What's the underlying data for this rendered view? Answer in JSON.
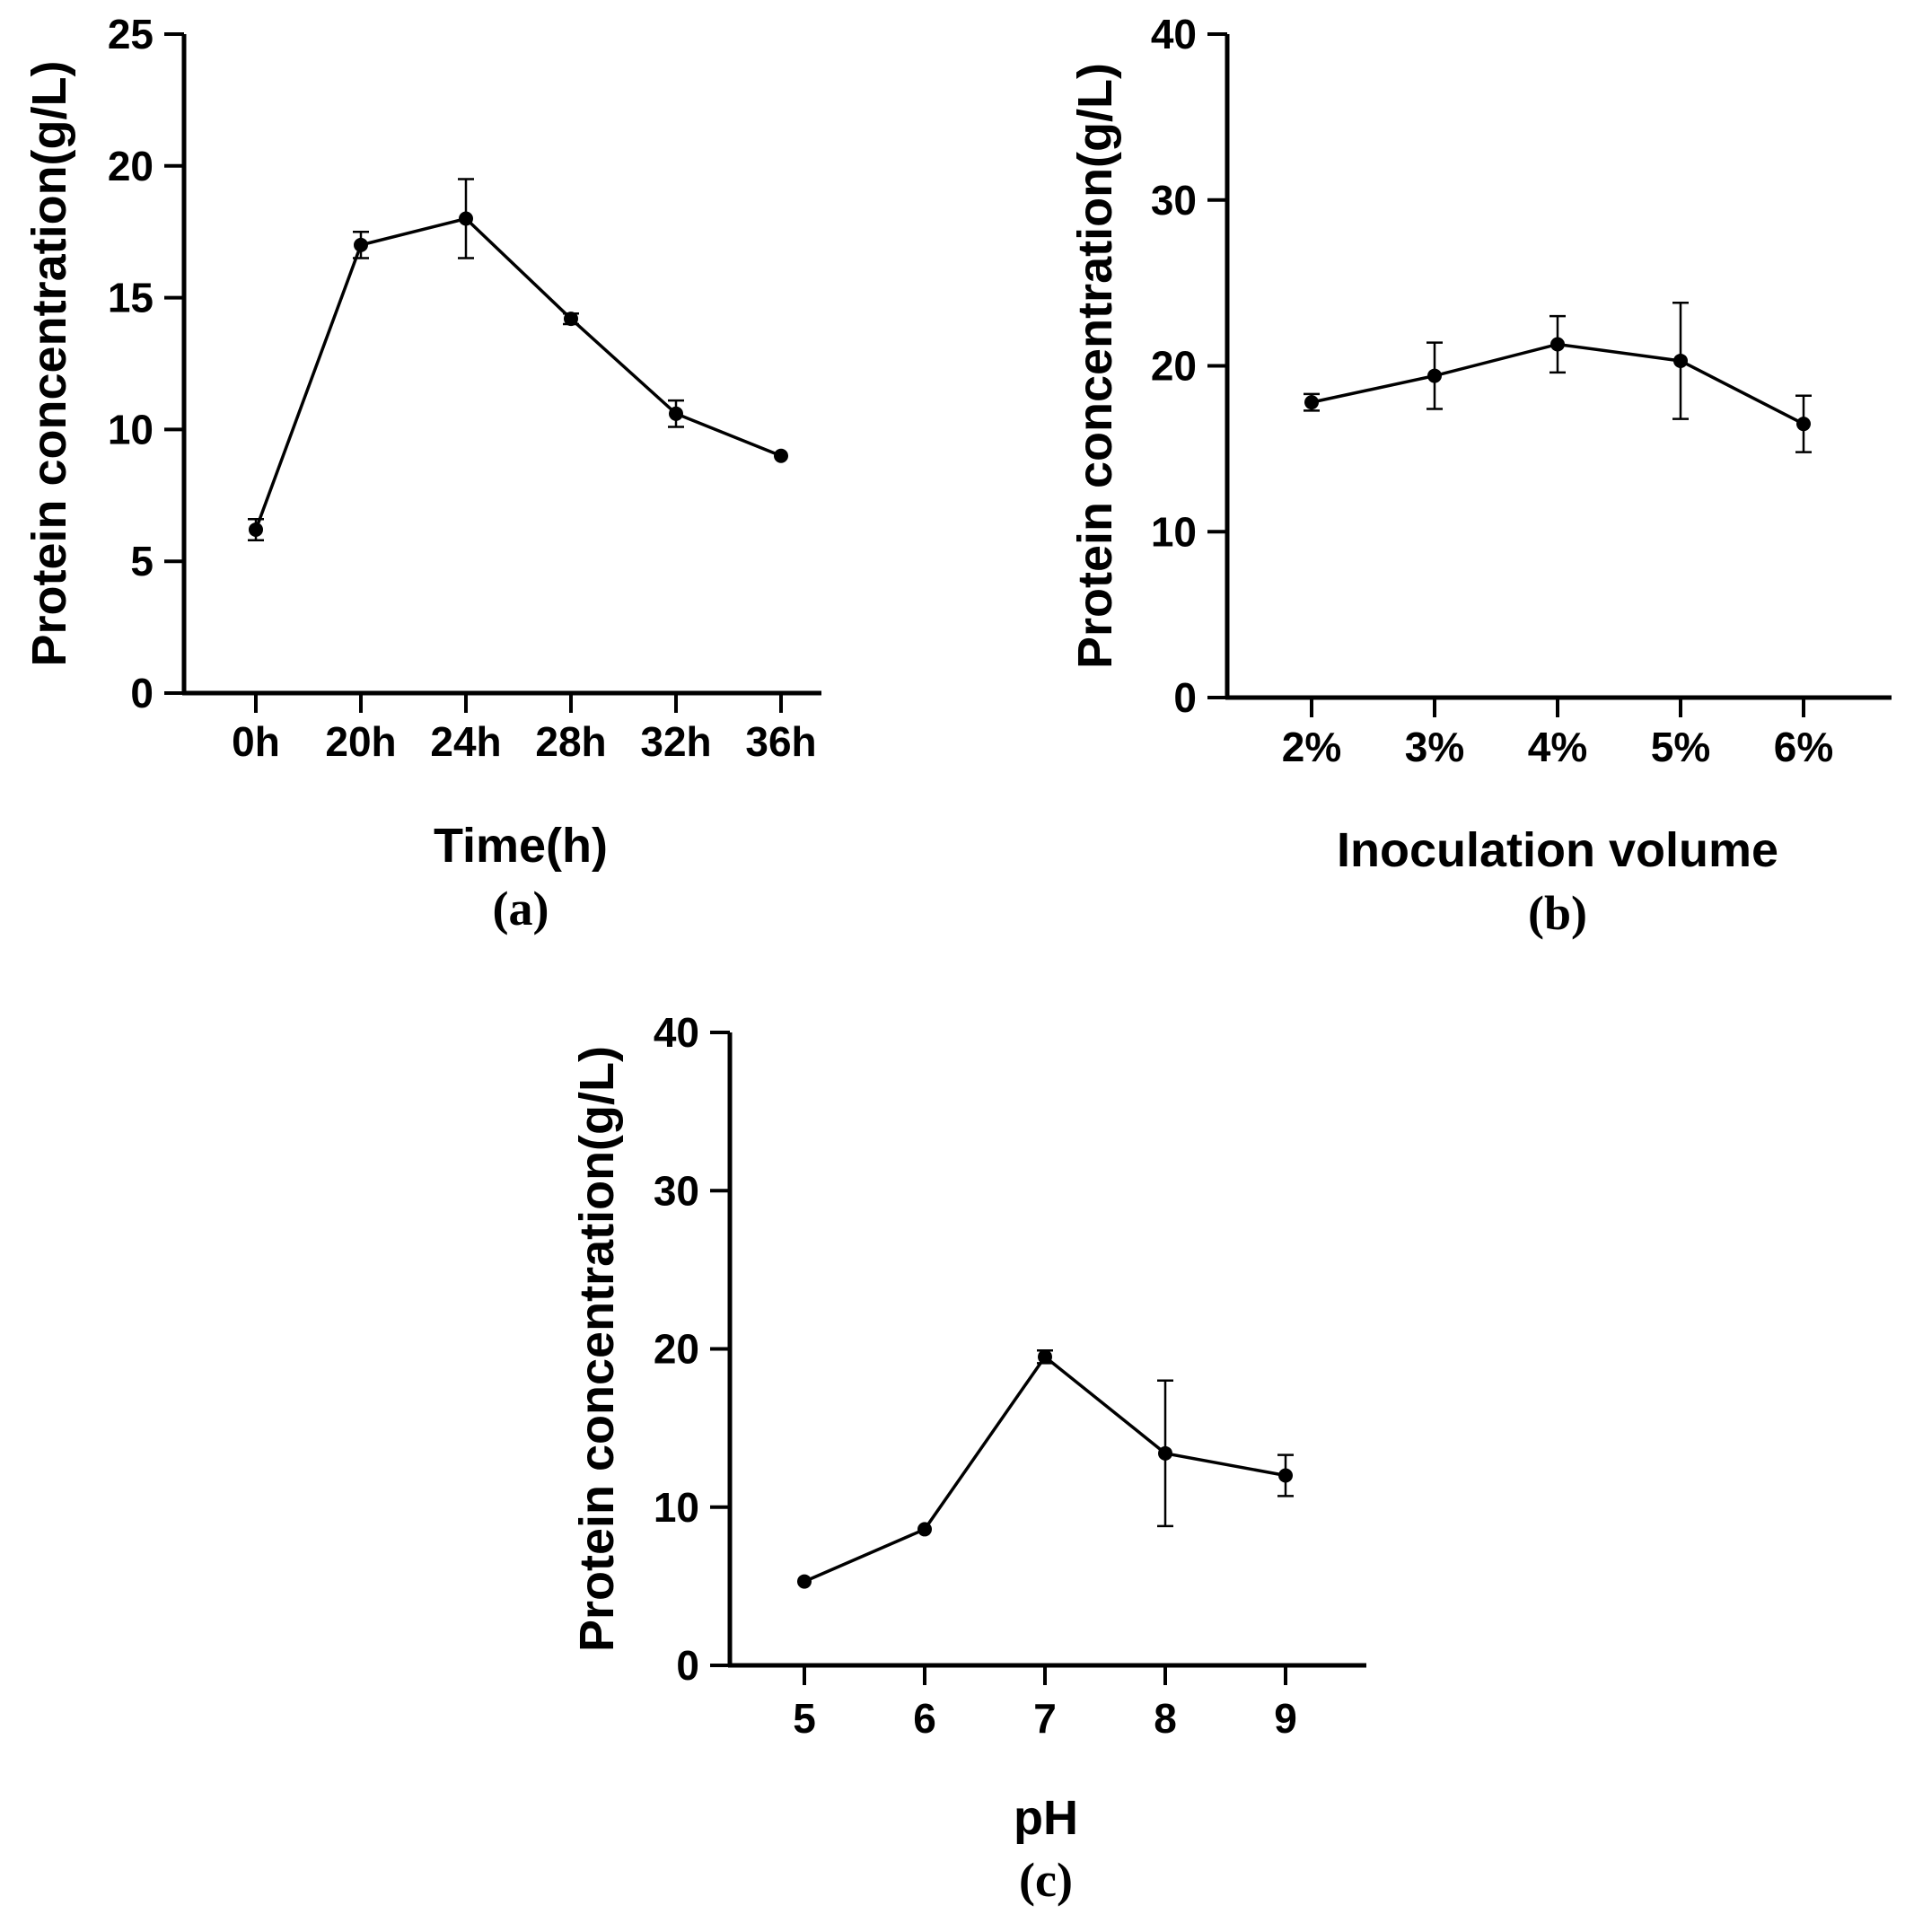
{
  "chart_data": [
    {
      "id": "a",
      "type": "line",
      "panel_label": "(a)",
      "xlabel": "Time(h)",
      "ylabel": "Protein concentration(g/L)",
      "categories": [
        "0h",
        "20h",
        "24h",
        "28h",
        "32h",
        "36h"
      ],
      "values": [
        6.2,
        17.0,
        18.0,
        14.2,
        10.6,
        9.0
      ],
      "errors": [
        0.4,
        0.5,
        1.5,
        0.2,
        0.5,
        0.0
      ],
      "ylim": [
        0,
        25
      ],
      "yticks": [
        0,
        5,
        10,
        15,
        20,
        25
      ],
      "grid": false
    },
    {
      "id": "b",
      "type": "line",
      "panel_label": "(b)",
      "xlabel": "Inoculation volume",
      "ylabel": "Protein concentration(g/L)",
      "categories": [
        "2%",
        "3%",
        "4%",
        "5%",
        "6%"
      ],
      "values": [
        17.8,
        19.4,
        21.3,
        20.3,
        16.5
      ],
      "errors": [
        0.5,
        2.0,
        1.7,
        3.5,
        1.7
      ],
      "ylim": [
        0,
        40
      ],
      "yticks": [
        0,
        10,
        20,
        30,
        40
      ],
      "grid": false
    },
    {
      "id": "c",
      "type": "line",
      "panel_label": "(c)",
      "xlabel": "pH",
      "ylabel": "Protein concentration(g/L)",
      "categories": [
        "5",
        "6",
        "7",
        "8",
        "9"
      ],
      "values": [
        5.3,
        8.6,
        19.5,
        13.4,
        12.0
      ],
      "errors": [
        0.0,
        0.0,
        0.4,
        4.6,
        1.3
      ],
      "ylim": [
        0,
        40
      ],
      "yticks": [
        0,
        10,
        20,
        30,
        40
      ],
      "grid": false
    }
  ]
}
